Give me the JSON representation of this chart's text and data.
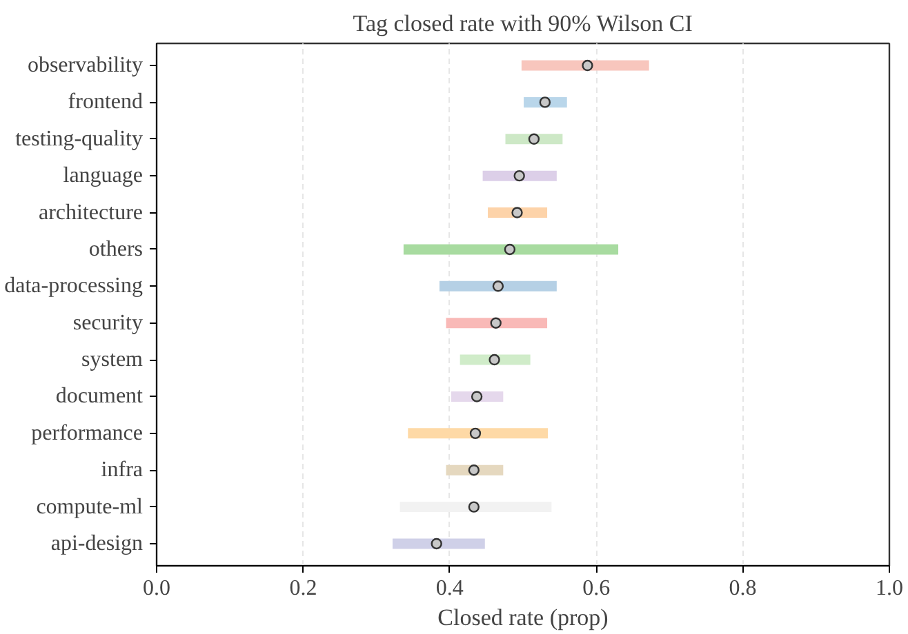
{
  "chart_data": {
    "type": "bar",
    "orientation": "horizontal",
    "title": "Tag closed rate with 90% Wilson CI",
    "xlabel": "Closed rate (prop)",
    "categories": [
      "observability",
      "frontend",
      "testing-quality",
      "language",
      "architecture",
      "others",
      "data-processing",
      "security",
      "system",
      "document",
      "performance",
      "infra",
      "compute-ml",
      "api-design"
    ],
    "series": [
      {
        "base": [
          0.498,
          0.501,
          0.476,
          0.445,
          0.452,
          0.337,
          0.386,
          0.395,
          0.414,
          0.402,
          0.343,
          0.395,
          0.332,
          0.322
        ],
        "values": [
          0.174,
          0.059,
          0.078,
          0.101,
          0.081,
          0.293,
          0.16,
          0.138,
          0.096,
          0.071,
          0.191,
          0.078,
          0.207,
          0.126
        ],
        "colors": [
          "#f8c6bd",
          "#b9d6ea",
          "#cde8c6",
          "#dccfe8",
          "#fdd3a9",
          "#a8dba0",
          "#b5d0e5",
          "#f9b9b7",
          "#d0ecc9",
          "#e5d8ec",
          "#fed9a6",
          "#e5d8bf",
          "#f2f2f2",
          "#cfd0e8"
        ]
      },
      {
        "type": "scatter",
        "color": "#c8c8c8",
        "x": [
          "observability",
          "frontend",
          "testing-quality",
          "language",
          "architecture",
          "others",
          "data-processing",
          "security",
          "system",
          "document",
          "performance",
          "infra",
          "compute-ml",
          "api-design"
        ],
        "values": [
          0.588,
          0.53,
          0.515,
          0.495,
          0.492,
          0.482,
          0.466,
          0.463,
          0.461,
          0.437,
          0.435,
          0.433,
          0.433,
          0.382
        ]
      }
    ],
    "xlim": [
      0.0,
      1.0
    ],
    "xticks": [
      {
        "value": 0,
        "label": "0.0"
      },
      {
        "value": 0.2,
        "label": "0.2"
      },
      {
        "value": 0.4,
        "label": "0.4"
      },
      {
        "value": 0.6,
        "label": "0.6"
      },
      {
        "value": 0.8,
        "label": "0.8"
      },
      {
        "value": 1,
        "label": "1.0"
      }
    ],
    "grid": "x",
    "marker": "circle"
  }
}
